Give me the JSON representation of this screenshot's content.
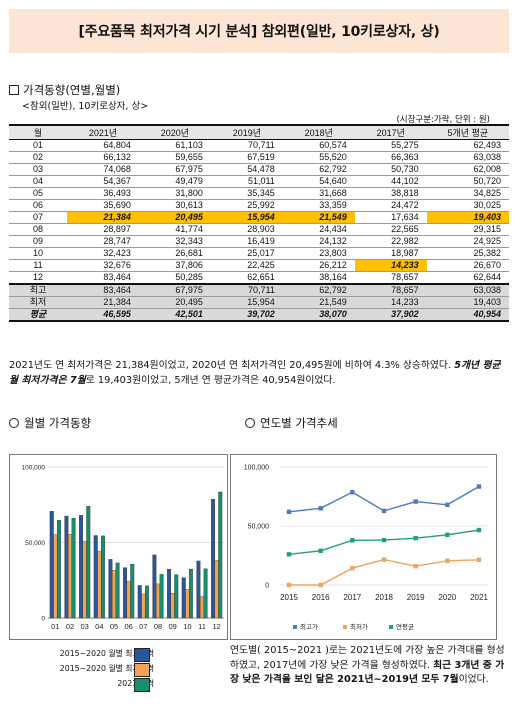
{
  "title": "[주요품목 최저가격 시기 분석] 참외편(일반, 10키로상자, 상)",
  "section1": {
    "heading": "가격동향(연별,월별)",
    "subtitle": "<참외(일반), 10키로상자, 상>",
    "unit_note": "(시장구분:가락, 단위 : 원)"
  },
  "table": {
    "headers": [
      "월",
      "2021년",
      "2020년",
      "2019년",
      "2018년",
      "2017년",
      "5개년 평균"
    ],
    "rows": [
      [
        "01",
        "64,804",
        "61,103",
        "70,711",
        "60,574",
        "55,275",
        "62,493"
      ],
      [
        "02",
        "66,132",
        "59,655",
        "67,519",
        "55,520",
        "66,363",
        "63,038"
      ],
      [
        "03",
        "74,068",
        "67,975",
        "54,478",
        "62,792",
        "50,730",
        "62,008"
      ],
      [
        "04",
        "54,367",
        "49,479",
        "51,011",
        "54,640",
        "44,102",
        "50,720"
      ],
      [
        "05",
        "36,493",
        "31,800",
        "35,345",
        "31,668",
        "38,818",
        "34,825"
      ],
      [
        "06",
        "35,690",
        "30,613",
        "25,992",
        "33,359",
        "24,472",
        "30,025"
      ],
      [
        "07",
        "21,384",
        "20,495",
        "15,954",
        "21,549",
        "17,634",
        "19,403"
      ],
      [
        "08",
        "28,897",
        "41,774",
        "28,903",
        "24,434",
        "22,565",
        "29,315"
      ],
      [
        "09",
        "28,747",
        "32,343",
        "16,419",
        "24,132",
        "22,982",
        "24,925"
      ],
      [
        "10",
        "32,423",
        "26,681",
        "25,017",
        "23,803",
        "18,987",
        "25,382"
      ],
      [
        "11",
        "32,676",
        "37,806",
        "22,425",
        "26,212",
        "14,233",
        "26,670"
      ],
      [
        "12",
        "83,464",
        "50,285",
        "62,651",
        "38,164",
        "78,657",
        "62,644"
      ]
    ],
    "highlight_cells": [
      [
        6,
        1
      ],
      [
        6,
        2
      ],
      [
        6,
        3
      ],
      [
        6,
        4
      ],
      [
        6,
        6
      ],
      [
        10,
        5
      ]
    ],
    "summary": [
      [
        "최고",
        "83,464",
        "67,975",
        "70,711",
        "62,792",
        "78,657",
        "63,038"
      ],
      [
        "최저",
        "21,384",
        "20,495",
        "15,954",
        "21,549",
        "14,233",
        "19,403"
      ]
    ],
    "average": [
      "평균",
      "46,595",
      "42,501",
      "39,702",
      "38,070",
      "37,902",
      "40,954"
    ]
  },
  "para1": {
    "t1": "2021년도 연 최저가격은 21,384원이었고, 2020년 연 최저가격인 20,495원에 비하여 4.3% 상승하였다. ",
    "b1": "5개년 평균 월 최저가격은 7월",
    "t2": "로 19,403원이었고, 5개년 연 평균가격은 40,954원이었다."
  },
  "section2": {
    "heading": "월별 가격동향"
  },
  "section3": {
    "heading": "연도별 가격추세"
  },
  "colors": {
    "max": "#2e5597",
    "min": "#f4a35b",
    "y2021": "#1a8d6a",
    "line_max": "#4b7bbf",
    "line_min": "#f0a35e",
    "line_avg": "#21a080"
  },
  "chart_data": [
    {
      "type": "bar",
      "categories": [
        "01",
        "02",
        "03",
        "04",
        "05",
        "06",
        "07",
        "08",
        "09",
        "10",
        "11",
        "12"
      ],
      "ylim": [
        0,
        100000
      ],
      "yticks": [
        "0",
        "50,000",
        "100,000"
      ],
      "series": [
        {
          "name": "2015~2020 월별 최고가격",
          "values": [
            70711,
            67519,
            67975,
            54640,
            38818,
            33359,
            21549,
            41774,
            32343,
            26681,
            37806,
            78657
          ]
        },
        {
          "name": "2015~2020 월별 최저가격",
          "values": [
            55275,
            55520,
            50730,
            44102,
            31668,
            24472,
            15954,
            22565,
            16419,
            18987,
            14233,
            38164
          ]
        },
        {
          "name": "2021 가격",
          "values": [
            64804,
            66132,
            74068,
            54367,
            36493,
            35690,
            21384,
            28897,
            28747,
            32423,
            32676,
            83464
          ]
        }
      ]
    },
    {
      "type": "line",
      "x": [
        "2015",
        "2016",
        "2017",
        "2018",
        "2019",
        "2020",
        "2021"
      ],
      "ylim": [
        0,
        100000
      ],
      "yticks": [
        "0",
        "50,000",
        "100,000"
      ],
      "series": [
        {
          "name": "최고가",
          "values": [
            62000,
            65000,
            78657,
            62792,
            70711,
            67975,
            83464
          ]
        },
        {
          "name": "최저가",
          "values": [
            0,
            0,
            14233,
            21549,
            15954,
            20495,
            21384
          ]
        },
        {
          "name": "연평균",
          "values": [
            26000,
            29000,
            37902,
            38070,
            39702,
            42501,
            46595
          ]
        }
      ]
    }
  ],
  "legend1": [
    "2015~2020 월별 최고가격",
    "2015~2020 월별 최저가격",
    "2021 가격"
  ],
  "para2": {
    "t1": "연도별( 2015~2021 )로는 2021년도에 가장 높은 가격대를 형성하였고, 2017년에 가장 낮은 가격을 형성하였다. ",
    "b1": "최근 3개년 중 가장 낮은 가격을 보인 달은 2021년~2019년 모두 7월",
    "t2": "이었다."
  }
}
